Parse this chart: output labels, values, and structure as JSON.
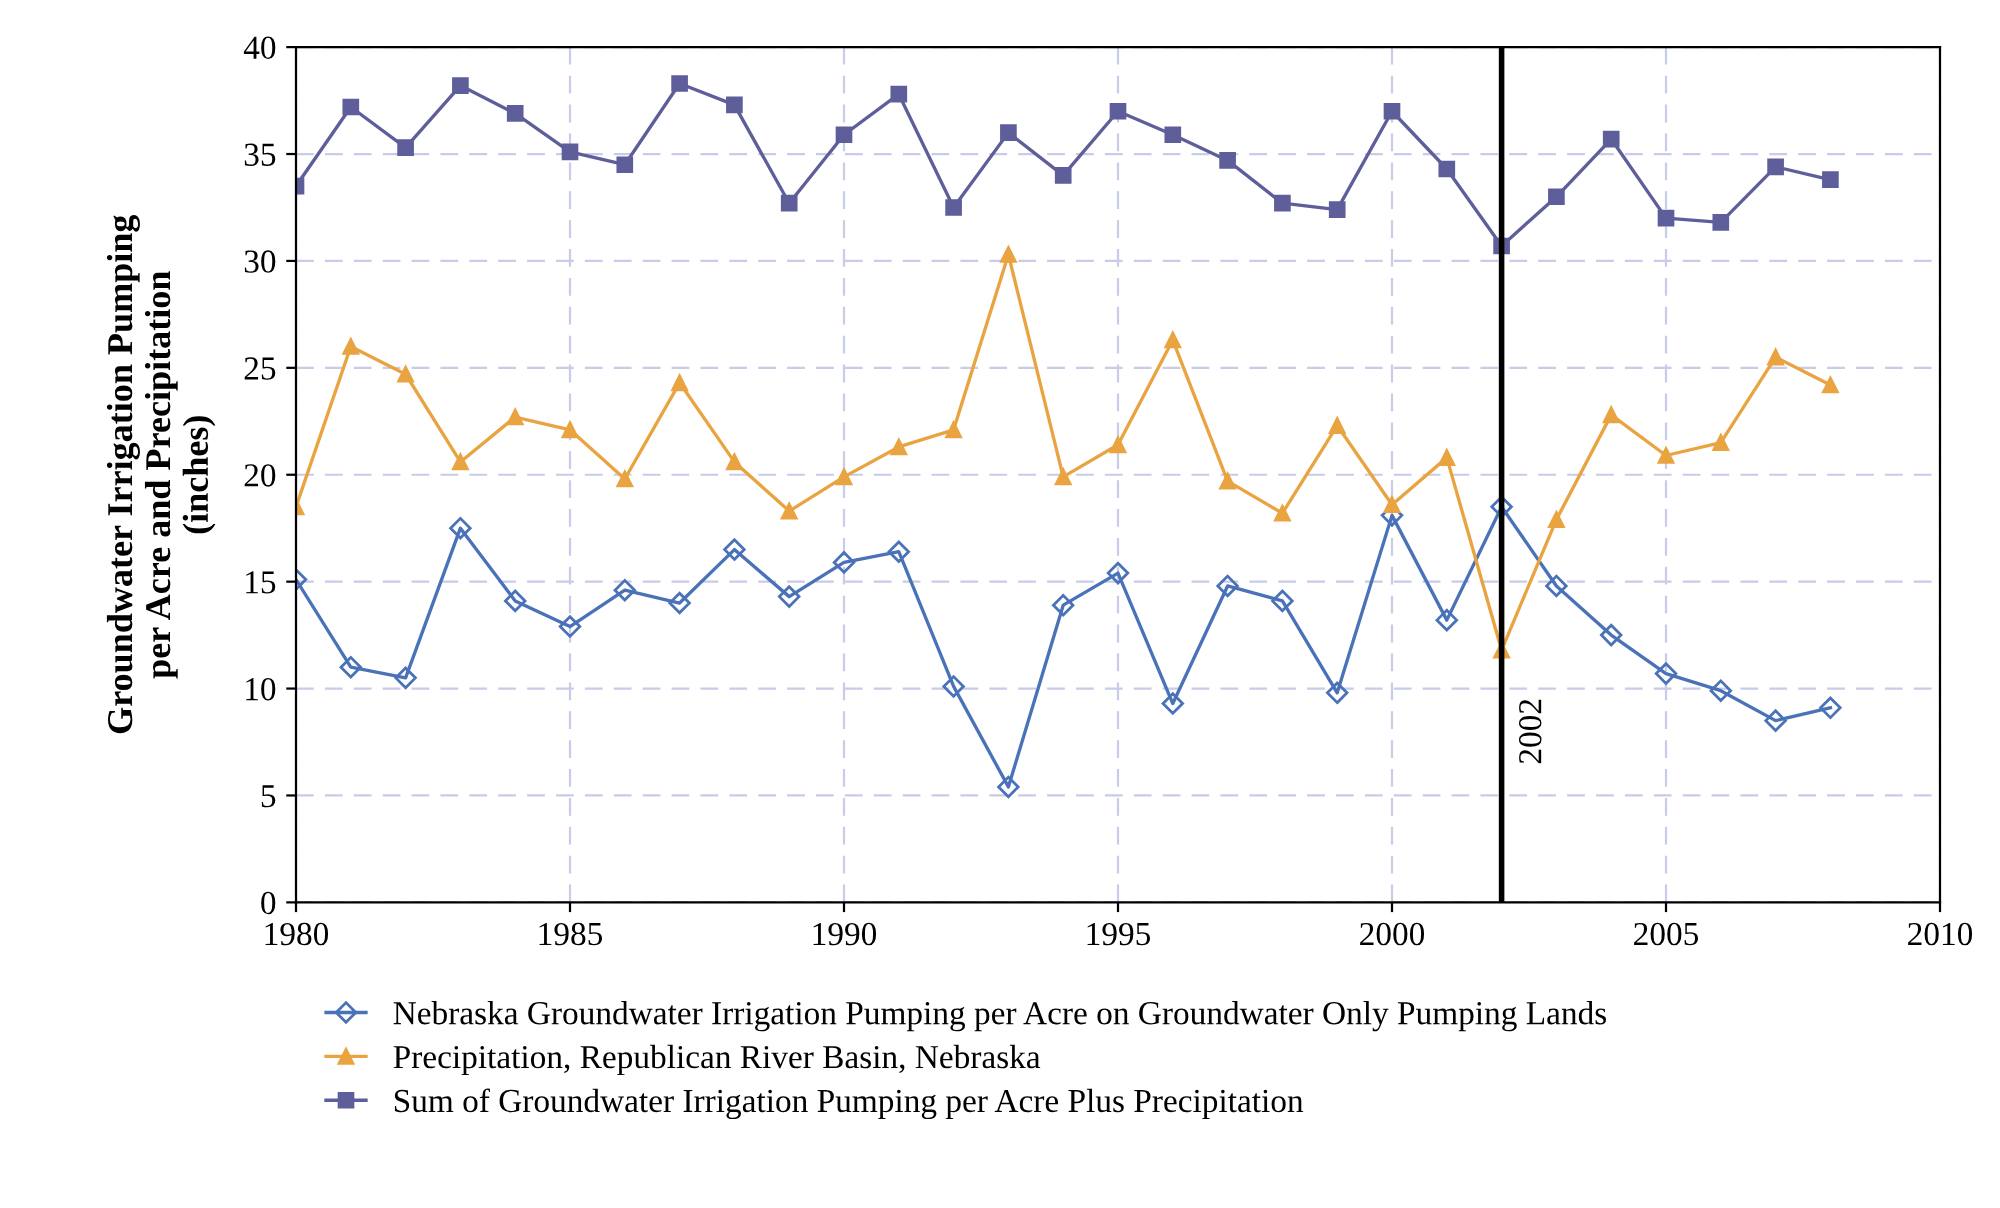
{
  "chart_data": {
    "type": "line",
    "ylabel": "Groundwater Irrigation Pumping\nper Acre and Precipitation\n(inches)",
    "x": [
      1980,
      1981,
      1982,
      1983,
      1984,
      1985,
      1986,
      1987,
      1988,
      1989,
      1990,
      1991,
      1992,
      1993,
      1994,
      1995,
      1996,
      1997,
      1998,
      1999,
      2000,
      2001,
      2002,
      2003,
      2004,
      2005,
      2006,
      2007,
      2008
    ],
    "series": [
      {
        "name": "Nebraska Groundwater Irrigation Pumping per Acre on Groundwater Only Pumping Lands",
        "color": "#4a72b8",
        "marker": "diamond",
        "values": [
          15.1,
          11.0,
          10.5,
          17.5,
          14.1,
          12.9,
          14.6,
          14.0,
          16.5,
          14.3,
          15.9,
          16.4,
          10.1,
          5.4,
          13.9,
          15.4,
          9.3,
          14.8,
          14.1,
          9.8,
          18.1,
          13.2,
          18.5,
          14.8,
          12.5,
          10.7,
          9.9,
          8.5,
          9.1
        ]
      },
      {
        "name": "Precipitation, Republican River Basin, Nebraska",
        "color": "#e9a441",
        "marker": "triangle",
        "values": [
          18.5,
          26.0,
          24.7,
          20.6,
          22.7,
          22.1,
          19.8,
          24.3,
          20.6,
          18.3,
          19.9,
          21.3,
          22.1,
          30.3,
          19.9,
          21.4,
          26.3,
          19.7,
          18.2,
          22.3,
          18.6,
          20.8,
          11.8,
          17.9,
          22.8,
          20.9,
          21.5,
          25.5,
          24.2
        ]
      },
      {
        "name": "Sum of Groundwater Irrigation Pumping per Acre Plus Precipitation",
        "color": "#5e5e9a",
        "marker": "square",
        "values": [
          33.5,
          37.2,
          35.3,
          38.2,
          36.9,
          35.1,
          34.5,
          38.3,
          37.3,
          32.7,
          35.9,
          37.8,
          32.5,
          36.0,
          34.0,
          37.0,
          35.9,
          34.7,
          32.7,
          32.4,
          37.0,
          34.3,
          30.7,
          33.0,
          35.7,
          32.0,
          31.8,
          34.4,
          33.8
        ]
      }
    ],
    "xlim": [
      1980,
      2010
    ],
    "xticks": [
      1980,
      1985,
      1990,
      1995,
      2000,
      2005,
      2010
    ],
    "ylim": [
      0,
      40
    ],
    "yticks": [
      0,
      5,
      10,
      15,
      20,
      25,
      30,
      35,
      40
    ],
    "ref_lines": [
      {
        "axis": "x",
        "value": 2002,
        "label": "2002",
        "color": "#000000"
      }
    ],
    "grid": true,
    "legend": "bottom",
    "line_style": "solid"
  }
}
